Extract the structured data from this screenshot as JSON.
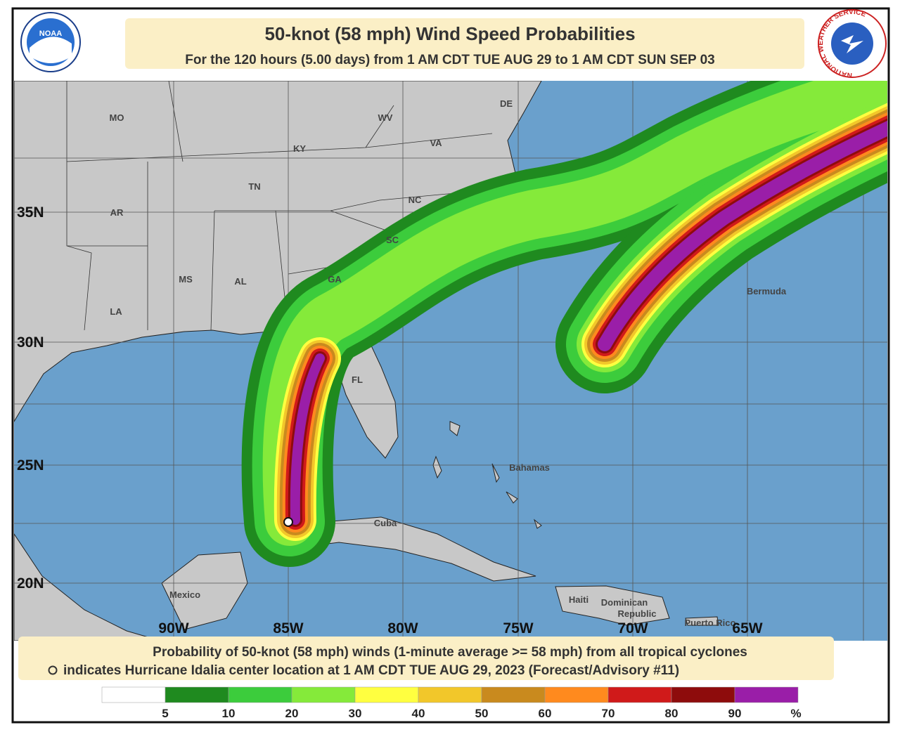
{
  "header": {
    "title": "50-knot (58 mph) Wind Speed Probabilities",
    "subtitle": "For the 120 hours (5.00 days) from 1 AM CDT TUE AUG 29 to 1 AM CDT SUN SEP 03"
  },
  "logos": {
    "noaa": "NOAA",
    "nws": "NATIONAL WEATHER SERVICE"
  },
  "map": {
    "lat_labels": [
      "35N",
      "30N",
      "25N",
      "20N"
    ],
    "lon_labels": [
      "90W",
      "85W",
      "80W",
      "75W",
      "70W",
      "65W"
    ],
    "places": [
      "MO",
      "WV",
      "DE",
      "KY",
      "VA",
      "TN",
      "NC",
      "AR",
      "SC",
      "MS",
      "AL",
      "GA",
      "LA",
      "FL",
      "Bermuda",
      "Bahamas",
      "Cuba",
      "Mexico",
      "Haiti",
      "Dominican",
      "Republic",
      "Puerto Rico"
    ]
  },
  "footer": {
    "line1": "Probability of 50-knot (58 mph) winds (1-minute average >= 58 mph) from all tropical cyclones",
    "line2": "indicates Hurricane Idalia center location at 1 AM CDT TUE AUG 29, 2023 (Forecast/Advisory #11)"
  },
  "legend": {
    "colors": [
      "#ffffff",
      "#1f8a1f",
      "#3ccc3c",
      "#85ea3a",
      "#ffff40",
      "#f2c72a",
      "#c98a1e",
      "#ff8a1e",
      "#d01a1a",
      "#8e0c0c",
      "#9a1ea8"
    ],
    "ticks": [
      5,
      10,
      20,
      30,
      40,
      50,
      60,
      70,
      80,
      90
    ],
    "unit": "%"
  }
}
